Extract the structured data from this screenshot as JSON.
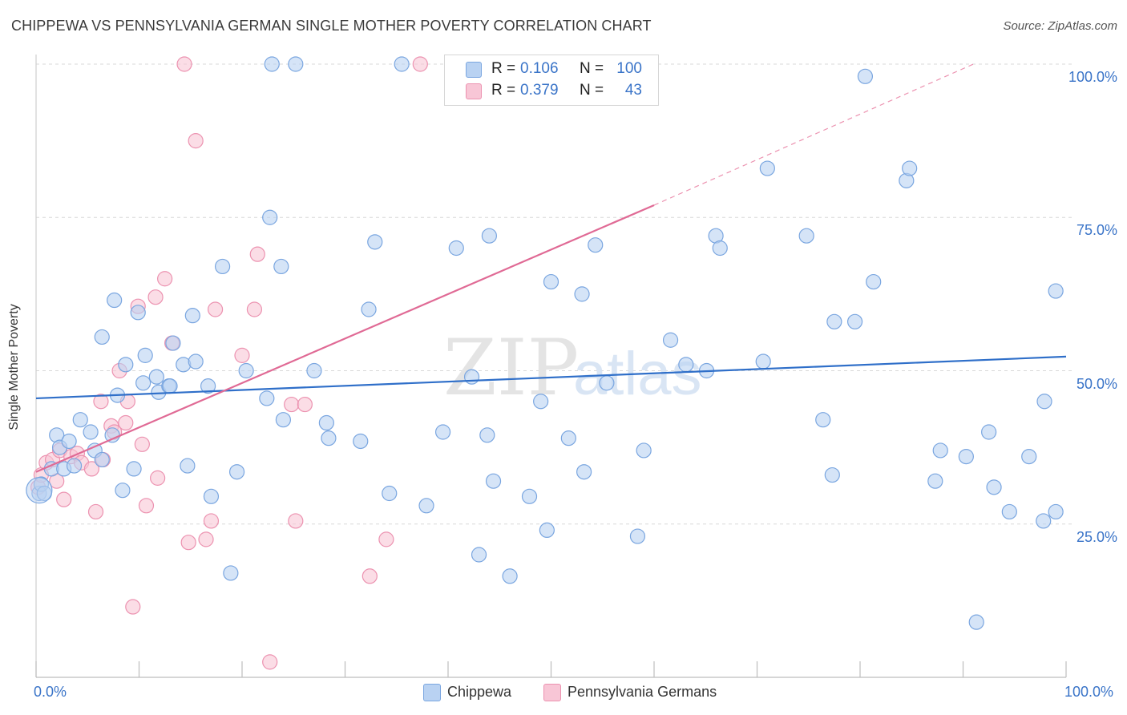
{
  "title": "CHIPPEWA VS PENNSYLVANIA GERMAN SINGLE MOTHER POVERTY CORRELATION CHART",
  "source": "Source: ZipAtlas.com",
  "watermark": {
    "zip": "ZIP",
    "atlas": "atlas"
  },
  "colors": {
    "blue_fill": "#b9d2f2",
    "blue_stroke": "#7aa6e0",
    "blue_line": "#2f6fc9",
    "pink_fill": "#f8c6d6",
    "pink_stroke": "#ec92b0",
    "pink_line": "#e06a95",
    "axis_text": "#3a74c8",
    "grid": "#d8d8d8"
  },
  "legend": {
    "rows": [
      {
        "r_label": "R =",
        "r_value": "0.106",
        "n_label": "N =",
        "n_value": "100"
      },
      {
        "r_label": "R =",
        "r_value": "0.379",
        "n_label": "N =",
        "n_value": "43"
      }
    ]
  },
  "bottom_legend": {
    "series1": "Chippewa",
    "series2": "Pennsylvania Germans"
  },
  "chart_data": {
    "type": "scatter",
    "title": "CHIPPEWA VS PENNSYLVANIA GERMAN SINGLE MOTHER POVERTY CORRELATION CHART",
    "xlabel": "",
    "ylabel": "Single Mother Poverty",
    "xlim": [
      0,
      100
    ],
    "ylim": [
      0,
      100
    ],
    "x_tick_labels": {
      "left": "0.0%",
      "right": "100.0%"
    },
    "y_tick_labels": [
      {
        "value": 100,
        "label": "100.0%"
      },
      {
        "value": 75,
        "label": "75.0%"
      },
      {
        "value": 50,
        "label": "50.0%"
      },
      {
        "value": 25,
        "label": "25.0%"
      }
    ],
    "series": [
      {
        "name": "Chippewa",
        "R": 0.106,
        "N": 100,
        "trend": {
          "x0": 0,
          "y0": 45.5,
          "x1": 100,
          "y1": 52.3
        },
        "points": [
          [
            0.3,
            30.0
          ],
          [
            0.5,
            31.5
          ],
          [
            0.8,
            30.0
          ],
          [
            1.5,
            34.0
          ],
          [
            2.0,
            39.5
          ],
          [
            2.3,
            37.5
          ],
          [
            2.7,
            34.0
          ],
          [
            3.2,
            38.5
          ],
          [
            3.7,
            34.5
          ],
          [
            4.3,
            42.0
          ],
          [
            5.3,
            40.0
          ],
          [
            5.7,
            37.0
          ],
          [
            6.4,
            35.5
          ],
          [
            6.4,
            55.5
          ],
          [
            7.4,
            39.5
          ],
          [
            7.6,
            61.5
          ],
          [
            7.9,
            46.0
          ],
          [
            8.4,
            30.5
          ],
          [
            8.7,
            51.0
          ],
          [
            9.5,
            34.0
          ],
          [
            9.9,
            59.5
          ],
          [
            10.4,
            48.0
          ],
          [
            10.6,
            52.5
          ],
          [
            11.7,
            49.0
          ],
          [
            11.9,
            46.5
          ],
          [
            12.9,
            47.5
          ],
          [
            13.0,
            47.5
          ],
          [
            13.3,
            54.5
          ],
          [
            14.3,
            51.0
          ],
          [
            14.7,
            34.5
          ],
          [
            15.2,
            59.0
          ],
          [
            15.5,
            51.5
          ],
          [
            16.7,
            47.5
          ],
          [
            17.0,
            29.5
          ],
          [
            18.1,
            67.0
          ],
          [
            18.9,
            17.0
          ],
          [
            19.5,
            33.5
          ],
          [
            20.4,
            50.0
          ],
          [
            22.4,
            45.5
          ],
          [
            22.7,
            75.0
          ],
          [
            22.9,
            100.0
          ],
          [
            23.8,
            67.0
          ],
          [
            24.0,
            42.0
          ],
          [
            25.2,
            100.0
          ],
          [
            27.0,
            50.0
          ],
          [
            28.2,
            41.5
          ],
          [
            28.4,
            39.0
          ],
          [
            31.5,
            38.5
          ],
          [
            32.3,
            60.0
          ],
          [
            32.9,
            71.0
          ],
          [
            34.3,
            30.0
          ],
          [
            35.5,
            100.0
          ],
          [
            37.9,
            28.0
          ],
          [
            39.5,
            40.0
          ],
          [
            40.8,
            70.0
          ],
          [
            42.3,
            49.0
          ],
          [
            43.0,
            20.0
          ],
          [
            43.8,
            39.5
          ],
          [
            44.0,
            72.0
          ],
          [
            44.4,
            32.0
          ],
          [
            46.0,
            16.5
          ],
          [
            47.9,
            29.5
          ],
          [
            49.0,
            45.0
          ],
          [
            49.6,
            24.0
          ],
          [
            50.0,
            64.5
          ],
          [
            51.7,
            39.0
          ],
          [
            53.0,
            62.5
          ],
          [
            53.2,
            33.5
          ],
          [
            54.3,
            70.5
          ],
          [
            55.4,
            48.0
          ],
          [
            58.4,
            23.0
          ],
          [
            59.0,
            37.0
          ],
          [
            61.6,
            55.0
          ],
          [
            63.1,
            51.0
          ],
          [
            65.1,
            50.0
          ],
          [
            66.0,
            72.0
          ],
          [
            66.4,
            70.0
          ],
          [
            70.6,
            51.5
          ],
          [
            71.0,
            83.0
          ],
          [
            74.8,
            72.0
          ],
          [
            76.4,
            42.0
          ],
          [
            77.3,
            33.0
          ],
          [
            77.5,
            58.0
          ],
          [
            79.5,
            58.0
          ],
          [
            80.5,
            98.0
          ],
          [
            81.3,
            64.5
          ],
          [
            84.5,
            81.0
          ],
          [
            84.8,
            83.0
          ],
          [
            87.3,
            32.0
          ],
          [
            87.8,
            37.0
          ],
          [
            90.3,
            36.0
          ],
          [
            91.3,
            9.0
          ],
          [
            92.5,
            40.0
          ],
          [
            93.0,
            31.0
          ],
          [
            94.5,
            27.0
          ],
          [
            96.4,
            36.0
          ],
          [
            97.8,
            25.5
          ],
          [
            97.9,
            45.0
          ],
          [
            99.0,
            27.0
          ],
          [
            99.0,
            63.0
          ]
        ]
      },
      {
        "name": "Pennsylvania Germans",
        "R": 0.379,
        "N": 43,
        "trend": {
          "x0": 0,
          "y0": 33.5,
          "x1": 60,
          "y1": 77.0,
          "dash_x1": 91,
          "dash_y1": 100
        },
        "points": [
          [
            0.2,
            31.0
          ],
          [
            0.5,
            33.0
          ],
          [
            1.0,
            35.0
          ],
          [
            1.6,
            35.5
          ],
          [
            2.0,
            32.0
          ],
          [
            2.3,
            37.0
          ],
          [
            2.7,
            29.0
          ],
          [
            3.4,
            36.0
          ],
          [
            4.0,
            36.5
          ],
          [
            4.4,
            35.0
          ],
          [
            5.4,
            34.0
          ],
          [
            5.8,
            27.0
          ],
          [
            6.3,
            45.0
          ],
          [
            6.5,
            35.5
          ],
          [
            7.3,
            41.0
          ],
          [
            7.6,
            40.0
          ],
          [
            8.1,
            50.0
          ],
          [
            8.7,
            41.5
          ],
          [
            8.9,
            45.0
          ],
          [
            9.4,
            11.5
          ],
          [
            9.9,
            60.5
          ],
          [
            10.3,
            38.0
          ],
          [
            10.7,
            28.0
          ],
          [
            11.6,
            62.0
          ],
          [
            11.8,
            32.5
          ],
          [
            12.5,
            65.0
          ],
          [
            13.2,
            54.5
          ],
          [
            14.4,
            100.0
          ],
          [
            14.8,
            22.0
          ],
          [
            15.5,
            87.5
          ],
          [
            16.5,
            22.5
          ],
          [
            17.0,
            25.5
          ],
          [
            17.4,
            60.0
          ],
          [
            20.0,
            52.5
          ],
          [
            21.2,
            60.0
          ],
          [
            21.5,
            69.0
          ],
          [
            22.7,
            2.5
          ],
          [
            24.8,
            44.5
          ],
          [
            25.2,
            25.5
          ],
          [
            26.1,
            44.5
          ],
          [
            32.4,
            16.5
          ],
          [
            34.0,
            22.5
          ],
          [
            37.3,
            100.0
          ]
        ]
      }
    ]
  }
}
